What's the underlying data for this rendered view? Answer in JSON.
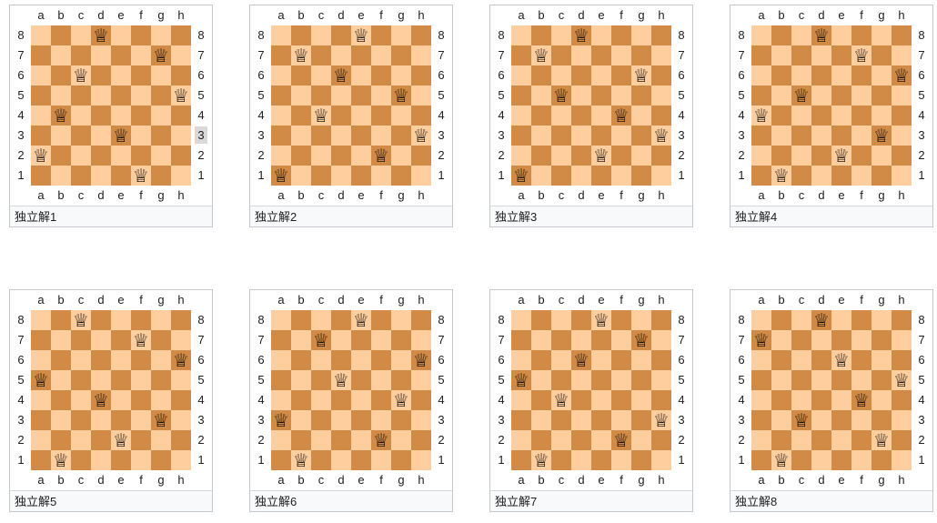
{
  "board_theme": {
    "light_square_color": "#ffce9e",
    "dark_square_color": "#d18b47",
    "queen_glyph": "♕",
    "queen_piece": "white-queen"
  },
  "labels": {
    "files": [
      "a",
      "b",
      "c",
      "d",
      "e",
      "f",
      "g",
      "h"
    ],
    "ranks_top_to_bottom": [
      "8",
      "7",
      "6",
      "5",
      "4",
      "3",
      "2",
      "1"
    ]
  },
  "boards": [
    {
      "caption": "独立解1",
      "queens": [
        "a2",
        "b4",
        "c6",
        "d8",
        "e3",
        "f1",
        "g7",
        "h5"
      ],
      "highlighted_right_rank": "3"
    },
    {
      "caption": "独立解2",
      "queens": [
        "a1",
        "b7",
        "c4",
        "d6",
        "e8",
        "f2",
        "g5",
        "h3"
      ],
      "highlighted_right_rank": null
    },
    {
      "caption": "独立解3",
      "queens": [
        "a1",
        "b7",
        "c5",
        "d8",
        "e2",
        "f4",
        "g6",
        "h3"
      ],
      "highlighted_right_rank": null
    },
    {
      "caption": "独立解4",
      "queens": [
        "a4",
        "b1",
        "c5",
        "d8",
        "e2",
        "f7",
        "g3",
        "h6"
      ],
      "highlighted_right_rank": null
    },
    {
      "caption": "独立解5",
      "queens": [
        "a5",
        "b1",
        "c8",
        "d4",
        "e2",
        "f7",
        "g3",
        "h6"
      ],
      "highlighted_right_rank": null
    },
    {
      "caption": "独立解6",
      "queens": [
        "a3",
        "b1",
        "c7",
        "d5",
        "e8",
        "f2",
        "g4",
        "h6"
      ],
      "highlighted_right_rank": null
    },
    {
      "caption": "独立解7",
      "queens": [
        "a5",
        "b1",
        "c4",
        "d6",
        "e8",
        "f2",
        "g7",
        "h3"
      ],
      "highlighted_right_rank": null
    },
    {
      "caption": "独立解8",
      "queens": [
        "a7",
        "b1",
        "c3",
        "d8",
        "e6",
        "f4",
        "g2",
        "h5"
      ],
      "highlighted_right_rank": null
    }
  ]
}
